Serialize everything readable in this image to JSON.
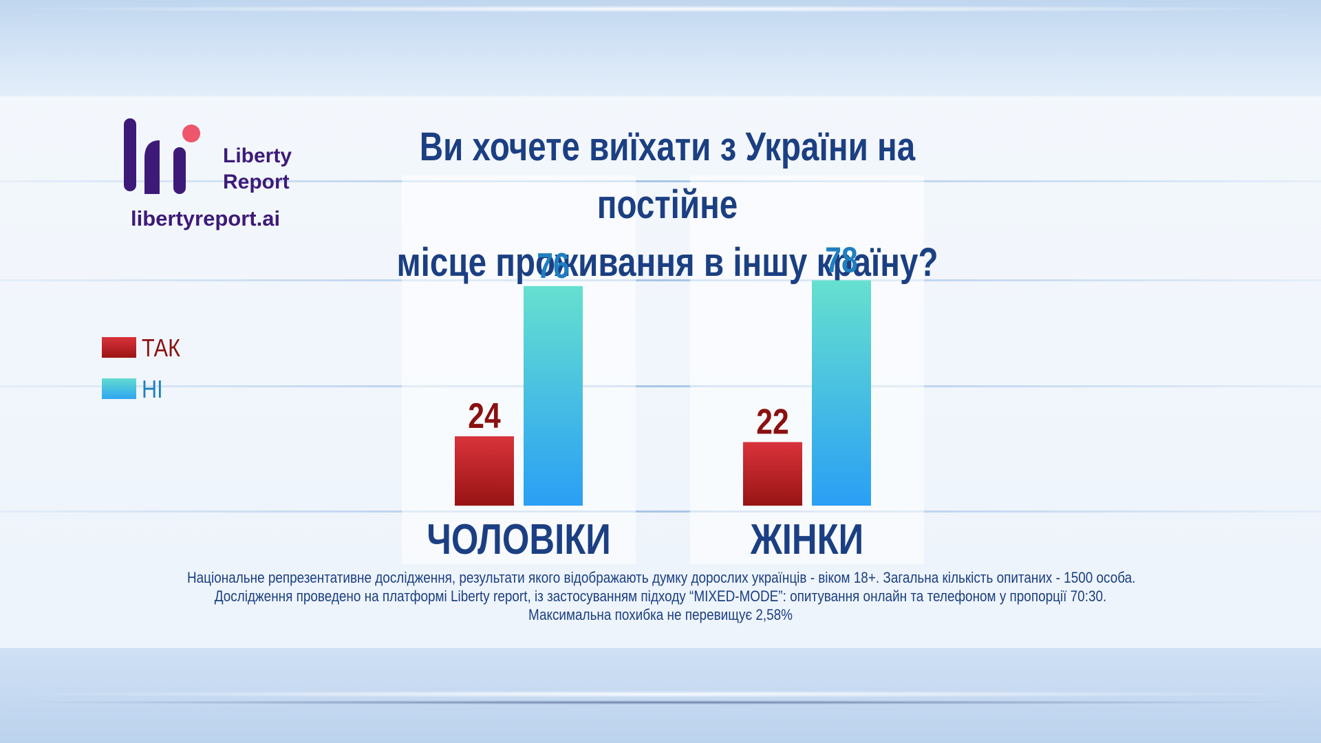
{
  "header": {
    "logo_words": [
      "Liberty",
      "Report"
    ],
    "logo_url": "libertyreport.ai",
    "title_lines": [
      "Ви хочете виїхати з України на постійне",
      "місце проживання в іншу країну?"
    ]
  },
  "legend": [
    {
      "label": "ТАК",
      "color": "#c8232b",
      "text_color": "#8b1010"
    },
    {
      "label": "НІ",
      "color": "#4fcde0",
      "text_color": "#1f7fc0"
    }
  ],
  "chart_data": {
    "type": "bar",
    "categories": [
      "ЧОЛОВІКИ",
      "ЖІНКИ"
    ],
    "series": [
      {
        "name": "ТАК",
        "values": [
          24,
          22
        ],
        "color": "#c8232b",
        "label_color": "#8b1010"
      },
      {
        "name": "НІ",
        "values": [
          76,
          78
        ],
        "color": "#3ab6ee",
        "label_color": "#1f7fc0"
      }
    ],
    "title": "Ви хочете виїхати з України на постійне місце проживання в іншу країну?",
    "ylim": [
      0,
      100
    ],
    "legend_position": "left",
    "grid": false
  },
  "footer": {
    "lines": [
      "Національне репрезентативне дослідження, результати якого відображають думку дорослих українців - віком 18+. Загальна кількість опитаних - 1500 особа.",
      "Дослідження проведено на платформі Liberty report, із застосуванням підходу “MIXED-MODE”: опитування онлайн та телефоном у пропорції 70:30.",
      "Максимальна похибка не перевищує 2,58%"
    ]
  }
}
